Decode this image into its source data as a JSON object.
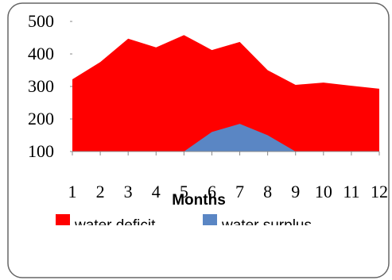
{
  "chart_data": {
    "type": "area",
    "x_label": "Months",
    "x": [
      1,
      2,
      3,
      4,
      5,
      6,
      7,
      8,
      9,
      10,
      11,
      12
    ],
    "xlim": [
      1,
      12
    ],
    "xticks": [
      1,
      2,
      3,
      4,
      5,
      6,
      7,
      8,
      9,
      10,
      11,
      12
    ],
    "ylim": [
      100,
      500
    ],
    "yticks": [
      100,
      200,
      300,
      400,
      500
    ],
    "legend": "bottom",
    "series": [
      {
        "name": "water deficit",
        "color": "#ff0000",
        "values": [
          322,
          375,
          447,
          420,
          458,
          412,
          437,
          350,
          305,
          312,
          302,
          293
        ]
      },
      {
        "name": "water surplus",
        "color": "#5a86c4",
        "values": [
          null,
          null,
          null,
          null,
          100,
          160,
          185,
          150,
          100,
          null,
          null,
          null
        ]
      }
    ]
  }
}
